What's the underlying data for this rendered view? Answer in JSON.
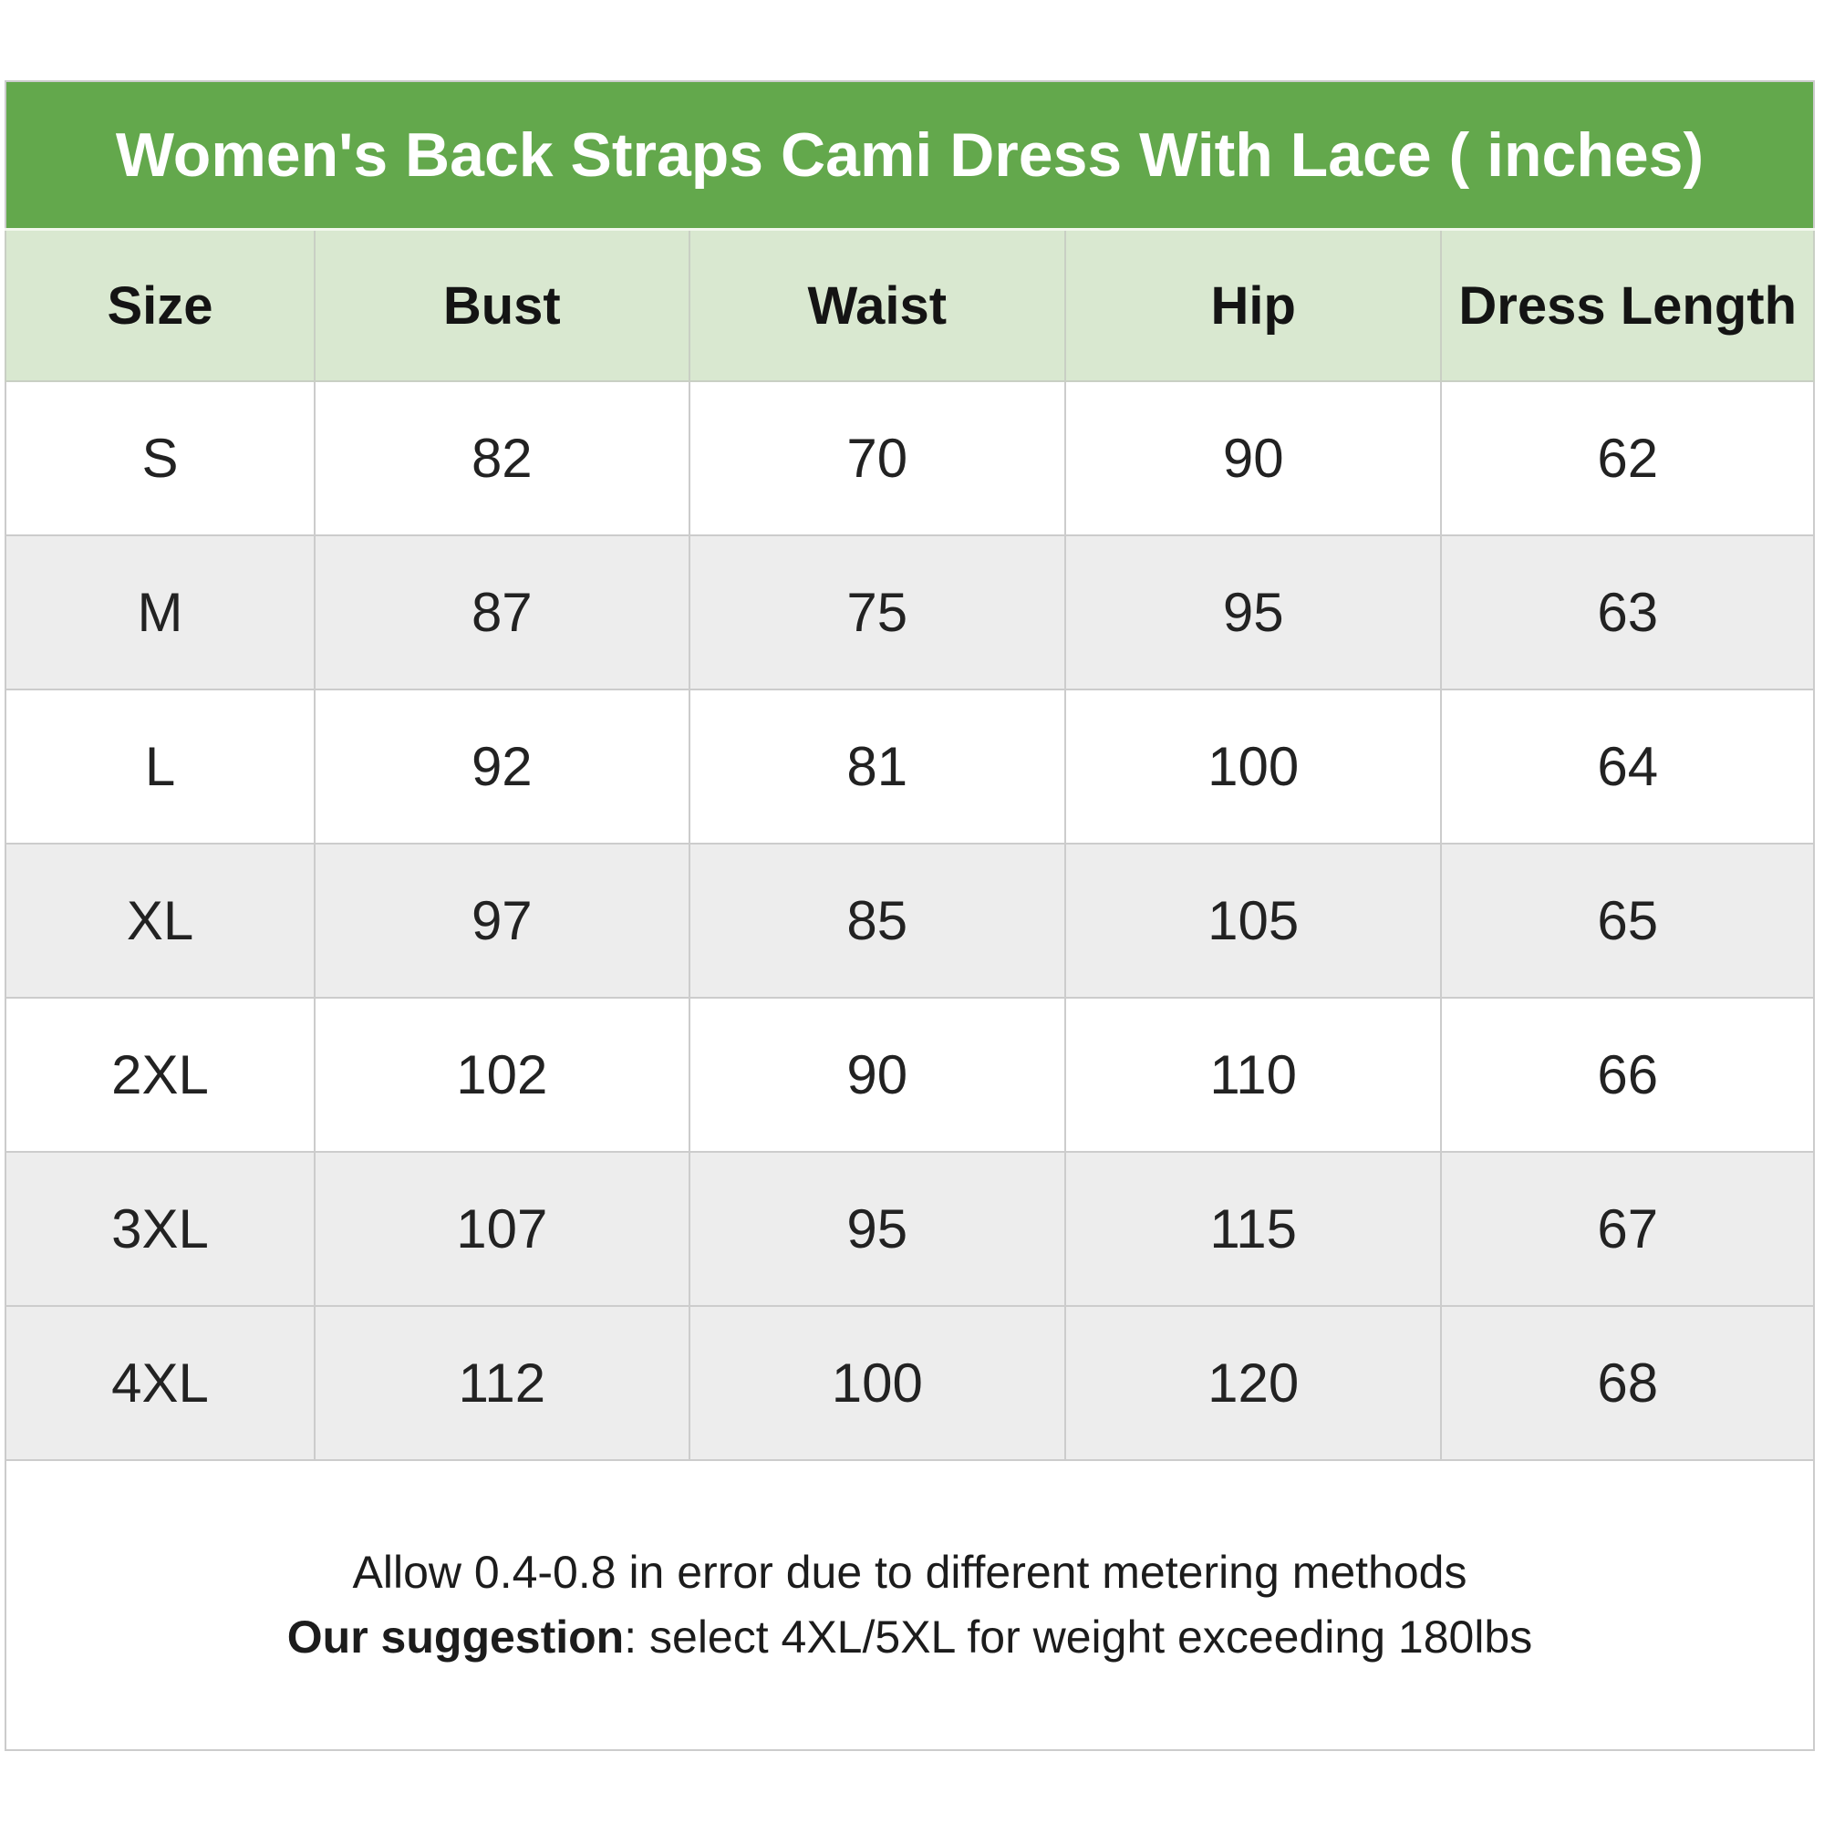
{
  "chart_data": {
    "type": "table",
    "title": "Women's Back Straps Cami Dress With Lace ( inches)",
    "columns": [
      "Size",
      "Bust",
      "Waist",
      "Hip",
      "Dress Length"
    ],
    "rows": [
      [
        "S",
        "82",
        "70",
        "90",
        "62"
      ],
      [
        "M",
        "87",
        "75",
        "95",
        "63"
      ],
      [
        "L",
        "92",
        "81",
        "100",
        "64"
      ],
      [
        "XL",
        "97",
        "85",
        "105",
        "65"
      ],
      [
        "2XL",
        "102",
        "90",
        "110",
        "66"
      ],
      [
        "3XL",
        "107",
        "95",
        "115",
        "67"
      ],
      [
        "4XL",
        "112",
        "100",
        "120",
        "68"
      ]
    ]
  },
  "footer": {
    "line1": "Allow 0.4-0.8 in error due to different metering methods",
    "line2_bold": "Our suggestion",
    "line2_rest": ": select 4XL/5XL for weight exceeding 180lbs"
  },
  "colors": {
    "banner_green": "#63a84c",
    "header_green": "#d9e8d0",
    "stripe_gray": "#ededed",
    "border_gray": "#cccccc",
    "title_text": "#ffffff",
    "body_text": "#222222"
  }
}
